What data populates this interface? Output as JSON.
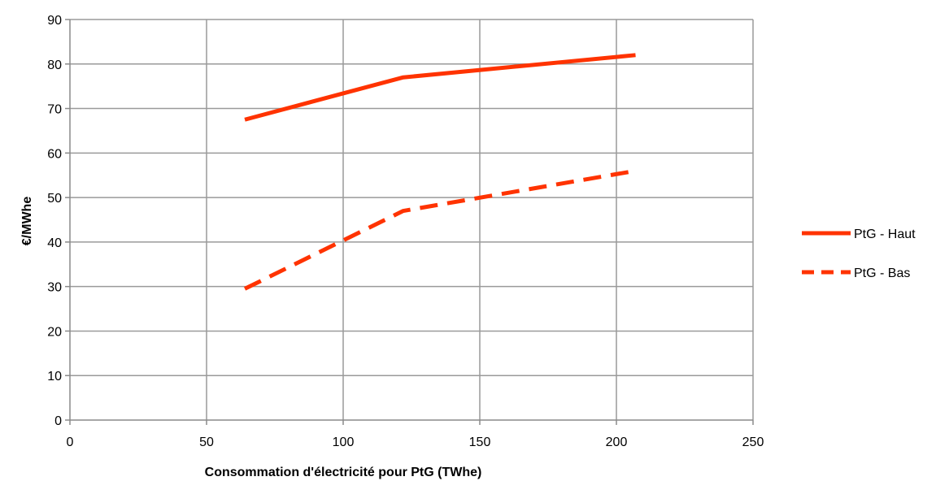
{
  "chart_data": {
    "type": "line",
    "title": "",
    "xlabel": "Consommation d'électricité pour PtG (TWhe)",
    "ylabel": "€/MWhe",
    "xlim": [
      0,
      250
    ],
    "ylim": [
      0,
      90
    ],
    "x_ticks": [
      "0",
      "50",
      "100",
      "150",
      "200",
      "250"
    ],
    "y_ticks": [
      "0",
      "10",
      "20",
      "30",
      "40",
      "50",
      "60",
      "70",
      "80",
      "90"
    ],
    "grid": true,
    "legend_position": "right",
    "series": [
      {
        "name": "PtG - Haut",
        "style": "solid",
        "color": "#ff3300",
        "points": [
          [
            64,
            67.5
          ],
          [
            122,
            77
          ],
          [
            207,
            82
          ]
        ]
      },
      {
        "name": "PtG - Bas",
        "style": "dashed",
        "color": "#ff3300",
        "points": [
          [
            64,
            29.5
          ],
          [
            122,
            47
          ],
          [
            207,
            56
          ]
        ]
      }
    ]
  }
}
